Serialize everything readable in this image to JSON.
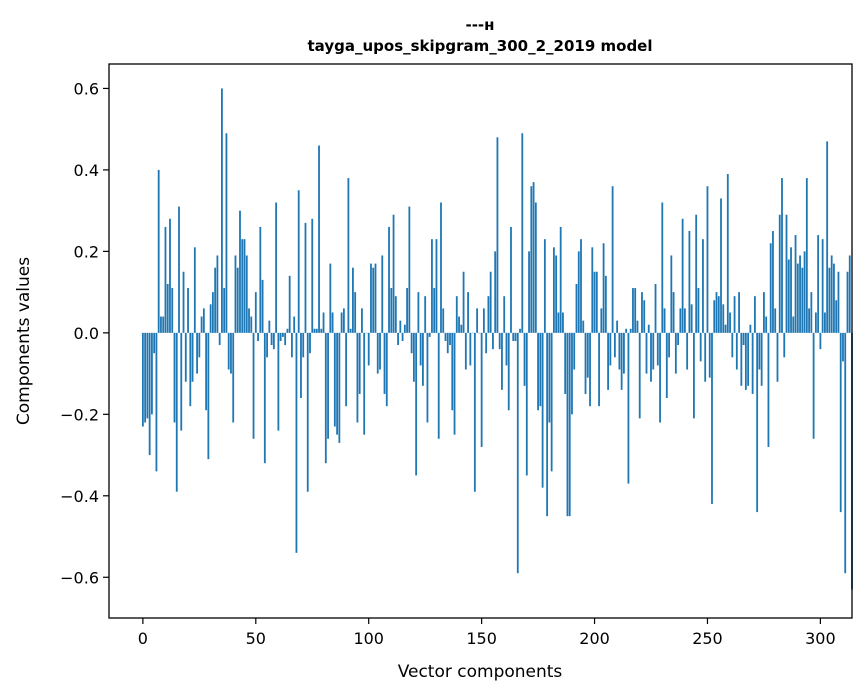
{
  "chart_data": {
    "type": "bar",
    "title_line1": "---н",
    "title_line2": "tayga_upos_skipgram_300_2_2019 model",
    "xlabel": "Vector components",
    "ylabel": "Components values",
    "xlim": [
      -15,
      314
    ],
    "ylim": [
      -0.7,
      0.66
    ],
    "xticks": [
      0,
      50,
      100,
      150,
      200,
      250,
      300
    ],
    "xtick_labels": [
      "0",
      "50",
      "100",
      "150",
      "200",
      "250",
      "300"
    ],
    "yticks": [
      -0.6,
      -0.4,
      -0.2,
      0.0,
      0.2,
      0.4,
      0.6
    ],
    "ytick_labels": [
      "−0.6",
      "−0.4",
      "−0.2",
      "0.0",
      "0.2",
      "0.4",
      "0.6"
    ],
    "bar_color": "#1f77b4",
    "values": [
      -0.23,
      -0.22,
      -0.21,
      -0.3,
      -0.2,
      -0.05,
      -0.34,
      0.4,
      0.04,
      0.04,
      0.26,
      0.12,
      0.28,
      0.11,
      -0.22,
      -0.39,
      0.31,
      -0.24,
      0.15,
      -0.12,
      0.11,
      -0.18,
      -0.12,
      0.21,
      -0.1,
      -0.06,
      0.04,
      0.06,
      -0.19,
      -0.31,
      0.07,
      0.1,
      0.16,
      0.19,
      -0.03,
      0.6,
      0.11,
      0.49,
      -0.09,
      -0.1,
      -0.22,
      0.19,
      0.16,
      0.3,
      0.23,
      0.23,
      0.19,
      0.06,
      0.04,
      -0.26,
      0.1,
      -0.02,
      0.26,
      0.13,
      -0.32,
      -0.06,
      0.03,
      -0.03,
      -0.04,
      0.32,
      -0.24,
      -0.02,
      -0.01,
      -0.03,
      0.01,
      0.14,
      -0.06,
      0.04,
      -0.54,
      0.35,
      -0.16,
      -0.06,
      0.27,
      -0.39,
      -0.05,
      0.28,
      0.01,
      0.01,
      0.46,
      0.01,
      0.05,
      -0.32,
      -0.26,
      0.17,
      0.05,
      -0.23,
      -0.25,
      -0.27,
      0.05,
      0.06,
      -0.18,
      0.38,
      0.01,
      0.16,
      0.1,
      -0.22,
      -0.15,
      0.06,
      -0.25,
      0.0,
      -0.08,
      0.17,
      0.16,
      0.17,
      -0.1,
      -0.09,
      0.19,
      -0.15,
      -0.18,
      0.26,
      0.11,
      0.29,
      0.09,
      -0.03,
      0.03,
      -0.02,
      0.02,
      0.11,
      0.31,
      -0.05,
      -0.12,
      -0.35,
      0.1,
      -0.08,
      -0.13,
      0.09,
      -0.22,
      -0.01,
      0.23,
      0.11,
      0.23,
      -0.26,
      0.32,
      0.06,
      -0.02,
      -0.05,
      -0.03,
      -0.19,
      -0.25,
      0.09,
      0.04,
      0.02,
      0.15,
      -0.09,
      0.1,
      -0.08,
      0.0,
      -0.39,
      0.06,
      0.0,
      -0.28,
      0.06,
      -0.05,
      0.09,
      0.15,
      -0.04,
      0.2,
      0.48,
      -0.04,
      -0.14,
      0.09,
      -0.08,
      -0.19,
      0.26,
      -0.02,
      -0.02,
      -0.59,
      0.01,
      0.49,
      -0.13,
      -0.35,
      0.2,
      0.36,
      0.37,
      0.32,
      -0.19,
      -0.18,
      -0.38,
      0.23,
      -0.45,
      -0.22,
      -0.34,
      0.21,
      0.19,
      0.05,
      0.26,
      0.05,
      -0.15,
      -0.45,
      -0.45,
      -0.2,
      -0.09,
      0.12,
      0.2,
      0.23,
      0.03,
      -0.15,
      -0.11,
      -0.18,
      0.21,
      0.15,
      0.15,
      -0.18,
      0.06,
      0.22,
      0.14,
      -0.14,
      -0.08,
      0.36,
      -0.06,
      0.03,
      -0.09,
      -0.14,
      -0.1,
      0.01,
      -0.37,
      0.01,
      0.11,
      0.11,
      0.03,
      -0.21,
      0.1,
      0.08,
      -0.1,
      0.02,
      -0.12,
      -0.09,
      0.12,
      -0.08,
      -0.22,
      0.32,
      0.06,
      -0.16,
      -0.06,
      0.19,
      0.1,
      -0.1,
      -0.03,
      0.06,
      0.28,
      0.06,
      -0.09,
      0.25,
      0.07,
      -0.21,
      0.29,
      0.11,
      -0.07,
      0.23,
      -0.12,
      0.36,
      -0.11,
      -0.42,
      0.08,
      0.1,
      0.09,
      0.33,
      0.07,
      0.02,
      0.39,
      0.05,
      -0.06,
      0.09,
      -0.09,
      0.1,
      -0.13,
      -0.03,
      -0.14,
      -0.13,
      0.02,
      -0.15,
      0.09,
      -0.44,
      -0.09,
      -0.13,
      0.1,
      0.04,
      -0.28,
      0.22,
      0.25,
      0.06,
      -0.12,
      0.29,
      0.38,
      -0.06,
      0.29,
      0.18,
      0.21,
      0.04,
      0.24,
      0.17,
      0.19,
      0.16,
      0.2,
      0.38,
      0.06,
      0.1,
      -0.26,
      0.05,
      0.24,
      -0.04,
      0.23,
      0.05,
      0.47,
      0.16,
      0.19,
      0.17,
      0.08,
      0.15,
      -0.44,
      -0.07,
      -0.59,
      0.15,
      0.19,
      -0.63
    ]
  }
}
